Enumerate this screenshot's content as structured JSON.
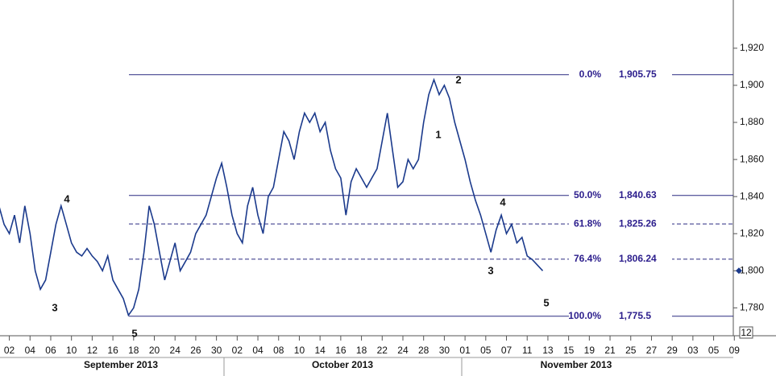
{
  "chart_data": {
    "type": "line",
    "series": [
      {
        "color": "#1b3a8c",
        "x": [
          -1,
          -0.5,
          0,
          0.5,
          1,
          1.5,
          2,
          2.5,
          3,
          3.5,
          4,
          4.5,
          5,
          5.5,
          6,
          6.5,
          7,
          7.5,
          8,
          8.5,
          9,
          9.5,
          10,
          10.5,
          11,
          11.5,
          12,
          12.5,
          13,
          13.5,
          14,
          14.5,
          15,
          15.5,
          16,
          16.5,
          17,
          17.5,
          18,
          18.5,
          19,
          19.5,
          20,
          20.5,
          21,
          21.5,
          22,
          22.5,
          23,
          23.5,
          24,
          24.5,
          25,
          25.5,
          26,
          26.5,
          27,
          27.5,
          28,
          28.5,
          29,
          29.5,
          30,
          30.5,
          31,
          31.5,
          32,
          32.5,
          33,
          33.5,
          34,
          34.5,
          35,
          35.5,
          36,
          36.5,
          37,
          37.5,
          38,
          38.5,
          39,
          39.5,
          40,
          40.5,
          41,
          41.5,
          42,
          42.5,
          43,
          43.5,
          44,
          44.5,
          45,
          45.5,
          46,
          46.5,
          47,
          47.5,
          48,
          48.5,
          49,
          49.5,
          50,
          50.5,
          51,
          51.5
        ],
        "values": [
          1835,
          1825,
          1820,
          1830,
          1815,
          1835,
          1820,
          1800,
          1790,
          1795,
          1810,
          1825,
          1835,
          1825,
          1815,
          1810,
          1808,
          1812,
          1808,
          1805,
          1800,
          1808,
          1795,
          1790,
          1785,
          1776,
          1780,
          1790,
          1810,
          1835,
          1825,
          1810,
          1795,
          1805,
          1815,
          1800,
          1805,
          1810,
          1820,
          1825,
          1830,
          1840,
          1850,
          1858,
          1845,
          1830,
          1820,
          1815,
          1835,
          1845,
          1830,
          1820,
          1840,
          1845,
          1860,
          1875,
          1870,
          1860,
          1875,
          1885,
          1880,
          1885,
          1875,
          1880,
          1865,
          1855,
          1850,
          1830,
          1848,
          1855,
          1850,
          1845,
          1850,
          1855,
          1870,
          1885,
          1865,
          1845,
          1848,
          1860,
          1855,
          1860,
          1880,
          1895,
          1903,
          1895,
          1900,
          1893,
          1880,
          1870,
          1860,
          1848,
          1838,
          1830,
          1820,
          1810,
          1822,
          1830,
          1820,
          1825,
          1815,
          1818,
          1808,
          1806,
          1803,
          1800
        ]
      }
    ],
    "xlim": [
      -0.9,
      69.9
    ],
    "ylim": [
      1768,
      1946
    ],
    "xticks": [
      {
        "value": 0,
        "label": "02"
      },
      {
        "value": 2,
        "label": "04"
      },
      {
        "value": 4,
        "label": "06"
      },
      {
        "value": 6,
        "label": "10"
      },
      {
        "value": 8,
        "label": "12"
      },
      {
        "value": 10,
        "label": "16"
      },
      {
        "value": 12,
        "label": "18"
      },
      {
        "value": 14,
        "label": "20"
      },
      {
        "value": 16,
        "label": "24"
      },
      {
        "value": 18,
        "label": "26"
      },
      {
        "value": 20,
        "label": "30"
      },
      {
        "value": 22,
        "label": "02"
      },
      {
        "value": 24,
        "label": "04"
      },
      {
        "value": 26,
        "label": "08"
      },
      {
        "value": 28,
        "label": "10"
      },
      {
        "value": 30,
        "label": "14"
      },
      {
        "value": 32,
        "label": "16"
      },
      {
        "value": 34,
        "label": "18"
      },
      {
        "value": 36,
        "label": "22"
      },
      {
        "value": 38,
        "label": "24"
      },
      {
        "value": 40,
        "label": "28"
      },
      {
        "value": 42,
        "label": "30"
      },
      {
        "value": 44,
        "label": "01"
      },
      {
        "value": 46,
        "label": "05"
      },
      {
        "value": 48,
        "label": "07"
      },
      {
        "value": 50,
        "label": "11"
      },
      {
        "value": 52,
        "label": "13"
      },
      {
        "value": 54,
        "label": "15"
      },
      {
        "value": 56,
        "label": "19"
      },
      {
        "value": 58,
        "label": "21"
      },
      {
        "value": 60,
        "label": "25"
      },
      {
        "value": 62,
        "label": "27"
      },
      {
        "value": 64,
        "label": "29"
      },
      {
        "value": 66,
        "label": "03"
      },
      {
        "value": 68,
        "label": "05"
      },
      {
        "value": 70,
        "label": "09"
      }
    ],
    "months": [
      "September 2013",
      "October 2013",
      "November 2013"
    ],
    "yticks": [
      {
        "value": 1780,
        "label": "1,780"
      },
      {
        "value": 1800,
        "label": "1,800"
      },
      {
        "value": 1820,
        "label": "1,820"
      },
      {
        "value": 1840,
        "label": "1,840"
      },
      {
        "value": 1860,
        "label": "1,860"
      },
      {
        "value": 1880,
        "label": "1,880"
      },
      {
        "value": 1900,
        "label": "1,900"
      },
      {
        "value": 1920,
        "label": "1,920"
      }
    ],
    "fib_levels": [
      {
        "name": "0.0%",
        "value": 1905.75,
        "value_label": "1,905.75",
        "dashed": false
      },
      {
        "name": "50.0%",
        "value": 1840.63,
        "value_label": "1,840.63",
        "dashed": false
      },
      {
        "name": "61.8%",
        "value": 1825.26,
        "value_label": "1,825.26",
        "dashed": true
      },
      {
        "name": "76.4%",
        "value": 1806.24,
        "value_label": "1,806.24",
        "dashed": true
      },
      {
        "name": "100.0%",
        "value": 1775.5,
        "value_label": "1,775.5",
        "dashed": false
      }
    ],
    "annotations": [
      "4",
      "3",
      "5",
      "1",
      "2",
      "4",
      "3",
      "5"
    ],
    "axis_badge": "12"
  }
}
